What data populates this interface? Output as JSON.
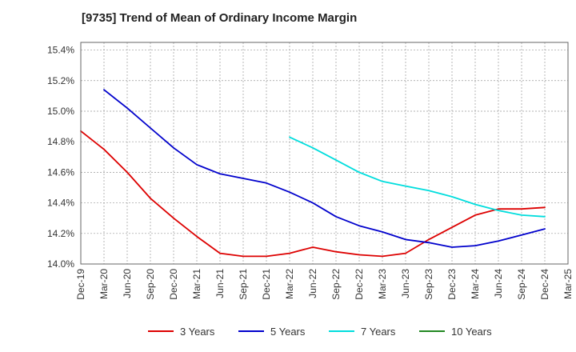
{
  "chart_data": {
    "type": "line",
    "title": "[9735]  Trend of Mean of Ordinary Income Margin",
    "xlabel": "",
    "ylabel": "",
    "x": [
      "Dec-19",
      "Mar-20",
      "Jun-20",
      "Sep-20",
      "Dec-20",
      "Mar-21",
      "Jun-21",
      "Sep-21",
      "Dec-21",
      "Mar-22",
      "Jun-22",
      "Sep-22",
      "Dec-22",
      "Mar-23",
      "Jun-23",
      "Sep-23",
      "Dec-23",
      "Mar-24",
      "Jun-24",
      "Sep-24",
      "Dec-24",
      "Mar-25"
    ],
    "ylim": [
      14.0,
      15.45
    ],
    "yticks": [
      14.0,
      14.2,
      14.4,
      14.6,
      14.8,
      15.0,
      15.2,
      15.4
    ],
    "ytick_labels": [
      "14.0%",
      "14.2%",
      "14.4%",
      "14.6%",
      "14.8%",
      "15.0%",
      "15.2%",
      "15.4%"
    ],
    "grid": true,
    "legend_position": "bottom",
    "series": [
      {
        "name": "3 Years",
        "color": "#dd0000",
        "values": [
          14.87,
          14.75,
          14.6,
          14.43,
          14.3,
          14.18,
          14.07,
          14.05,
          14.05,
          14.07,
          14.11,
          14.08,
          14.06,
          14.05,
          14.07,
          14.16,
          14.24,
          14.32,
          14.36,
          14.36,
          14.37,
          null
        ]
      },
      {
        "name": "5 Years",
        "color": "#0000cc",
        "values": [
          null,
          15.14,
          15.02,
          14.89,
          14.76,
          14.65,
          14.59,
          14.56,
          14.53,
          14.47,
          14.4,
          14.31,
          14.25,
          14.21,
          14.16,
          14.14,
          14.11,
          14.12,
          14.15,
          14.19,
          14.23,
          null
        ]
      },
      {
        "name": "7 Years",
        "color": "#00dddd",
        "values": [
          null,
          null,
          null,
          null,
          null,
          null,
          null,
          null,
          null,
          14.83,
          14.76,
          14.68,
          14.6,
          14.54,
          14.51,
          14.48,
          14.44,
          14.39,
          14.35,
          14.32,
          14.31,
          null
        ]
      },
      {
        "name": "10 Years",
        "color": "#228822",
        "values": [
          null,
          null,
          null,
          null,
          null,
          null,
          null,
          null,
          null,
          null,
          null,
          null,
          null,
          null,
          null,
          null,
          null,
          null,
          null,
          null,
          null,
          null
        ]
      }
    ]
  }
}
